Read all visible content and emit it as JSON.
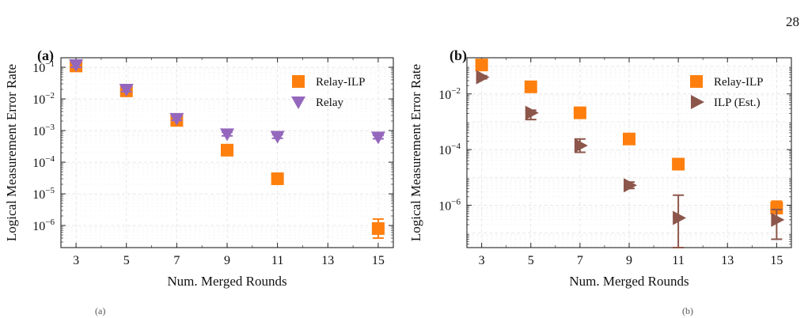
{
  "page": {
    "number": "28"
  },
  "captions": {
    "left": "(a)",
    "right": "(b)"
  },
  "chart_data": [
    {
      "type": "scatter",
      "panel_label": "(a)",
      "xlabel": "Num. Merged Rounds",
      "ylabel": "Logical Measurement Error Rate",
      "yscale": "log",
      "xlim": [
        2.4,
        15.6
      ],
      "ylim": [
        2e-07,
        0.2
      ],
      "xticks": [
        3,
        5,
        7,
        9,
        11,
        13,
        15
      ],
      "xtick_labels": [
        "3",
        "5",
        "7",
        "9",
        "11",
        "13",
        "15"
      ],
      "yticks": [
        1e-06,
        1e-05,
        0.0001,
        0.001,
        0.01,
        0.1
      ],
      "ytick_labels": [
        {
          "base": "10",
          "exp": "−6"
        },
        {
          "base": "10",
          "exp": "−5"
        },
        {
          "base": "10",
          "exp": "−4"
        },
        {
          "base": "10",
          "exp": "−3"
        },
        {
          "base": "10",
          "exp": "−2"
        },
        {
          "base": "10",
          "exp": "−1"
        }
      ],
      "grid": true,
      "legend_position": "top-right",
      "series": [
        {
          "name": "Relay-ILP",
          "marker": "square",
          "color": "#ff7f0e",
          "x": [
            3,
            5,
            7,
            9,
            11,
            15
          ],
          "y": [
            0.11,
            0.018,
            0.0021,
            0.00024,
            3e-05,
            8e-07
          ],
          "err_lo": [
            0.085,
            0.0145,
            0.00175,
            0.0002,
            2.5e-05,
            4e-07
          ],
          "err_hi": [
            0.14,
            0.022,
            0.0025,
            0.00028,
            3.5e-05,
            1.6e-06
          ]
        },
        {
          "name": "Relay",
          "marker": "triangle-down",
          "color": "#9467bd",
          "x": [
            3,
            5,
            7,
            9,
            11,
            15
          ],
          "y": [
            0.12,
            0.02,
            0.0024,
            0.00078,
            0.00065,
            0.00062
          ],
          "err_lo": [
            0.1,
            0.017,
            0.0021,
            0.00068,
            0.00057,
            0.00055
          ],
          "err_hi": [
            0.145,
            0.024,
            0.0028,
            0.0009,
            0.00074,
            0.0007
          ]
        }
      ]
    },
    {
      "type": "scatter",
      "panel_label": "(b)",
      "xlabel": "Num. Merged Rounds",
      "ylabel": "Logical Measurement Error Rate",
      "yscale": "log",
      "xlim": [
        2.4,
        15.6
      ],
      "ylim": [
        3e-08,
        0.2
      ],
      "xticks": [
        3,
        5,
        7,
        9,
        11,
        13,
        15
      ],
      "xtick_labels": [
        "3",
        "5",
        "7",
        "9",
        "11",
        "13",
        "15"
      ],
      "yticks": [
        1e-06,
        0.0001,
        0.01
      ],
      "ytick_labels": [
        {
          "base": "10",
          "exp": "−6"
        },
        {
          "base": "10",
          "exp": "−4"
        },
        {
          "base": "10",
          "exp": "−2"
        }
      ],
      "grid": true,
      "legend_position": "top-right",
      "series": [
        {
          "name": "Relay-ILP",
          "marker": "square",
          "color": "#ff7f0e",
          "x": [
            3,
            5,
            7,
            9,
            11,
            15
          ],
          "y": [
            0.11,
            0.018,
            0.0021,
            0.00024,
            3e-05,
            8e-07
          ],
          "err_lo": [
            0.085,
            0.0145,
            0.00175,
            0.0002,
            2.5e-05,
            5e-07
          ],
          "err_hi": [
            0.14,
            0.022,
            0.0025,
            0.00028,
            3.5e-05,
            1.4e-06
          ]
        },
        {
          "name": "ILP (Est.)",
          "marker": "triangle-right",
          "color": "#8c564b",
          "x": [
            3,
            5,
            7,
            9,
            11,
            15
          ],
          "y": [
            0.04,
            0.0021,
            0.00014,
            5.2e-06,
            3.5e-07,
            3e-07
          ],
          "err_lo": [
            0.035,
            0.0012,
            8e-05,
            4e-06,
            3e-08,
            6e-08
          ],
          "err_hi": [
            0.045,
            0.0026,
            0.00024,
            6.8e-06,
            2.3e-06,
            7e-07
          ]
        }
      ]
    }
  ]
}
